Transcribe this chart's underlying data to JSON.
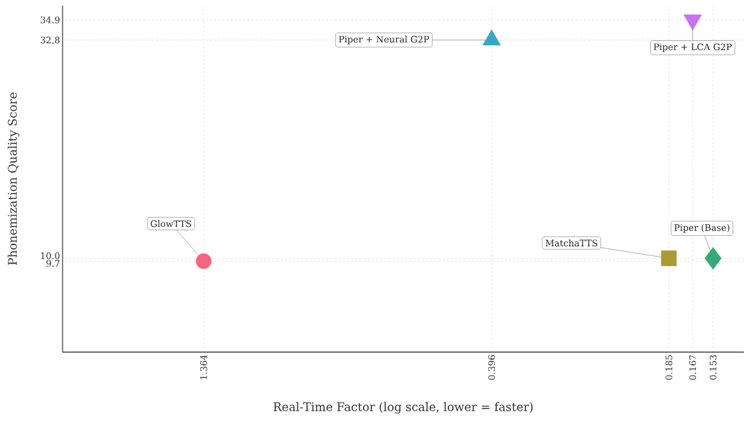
{
  "chart_data": {
    "type": "scatter",
    "xlabel": "Real-Time Factor (log scale, lower = faster)",
    "ylabel": "Phonemization Quality Score",
    "log": "x",
    "xlim": [
      2.5,
      0.134
    ],
    "ylim": [
      0.2,
      36.4
    ],
    "xticks": [
      1.364,
      0.396,
      0.185,
      0.167,
      0.153
    ],
    "yticks": [
      9.7,
      {
        "value": 10,
        "label": "10.0"
      },
      32.8,
      34.9
    ],
    "grid": true,
    "series": [
      {
        "color": "#f5657e",
        "marker": "circle",
        "x": [
          1.364
        ],
        "values": [
          9.7
        ]
      },
      {
        "color": "#3aa6c4",
        "marker": "triangle",
        "x": [
          0.396
        ],
        "values": [
          32.8
        ]
      },
      {
        "color": "#c772ef",
        "marker": "triangle down",
        "x": [
          0.167
        ],
        "values": [
          34.9
        ]
      },
      {
        "color": "#ac9a33",
        "marker": "square",
        "x": [
          0.185
        ],
        "values": [
          10.0
        ]
      },
      {
        "color": "#36ab77",
        "marker": "diamond",
        "x": [
          0.153
        ],
        "values": [
          10.0
        ]
      }
    ],
    "annotations": [
      {
        "text": "GlowTTS",
        "x": 1.364,
        "y": 9.7
      },
      {
        "text": "Piper + Neural G2P",
        "x": 0.396,
        "y": 32.8
      },
      {
        "text": "Piper + LCA G2P",
        "x": 0.167,
        "y": 34.9
      },
      {
        "text": "MatchaTTS",
        "x": 0.185,
        "y": 10.0
      },
      {
        "text": "Piper (Base)",
        "x": 0.153,
        "y": 10.0
      }
    ]
  }
}
